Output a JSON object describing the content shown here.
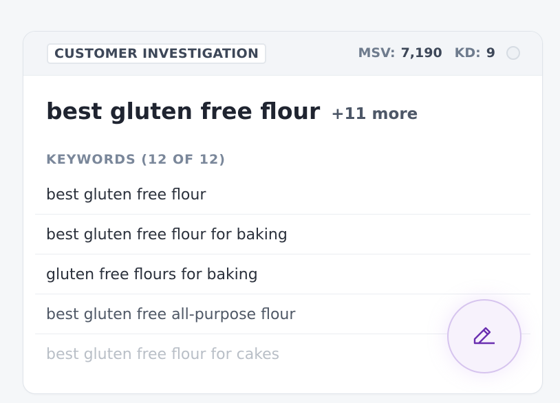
{
  "header": {
    "tag": "CUSTOMER INVESTIGATION",
    "msv_label": "MSV:",
    "msv_value": "7,190",
    "kd_label": "KD:",
    "kd_value": "9"
  },
  "title": "best gluten free flour",
  "more": "+11 more",
  "keywords_label": "KEYWORDS (12 OF 12)",
  "keywords": [
    "best gluten free flour",
    "best gluten free flour for baking",
    "gluten free flours for baking",
    "best gluten free all-purpose flour",
    "best gluten free flour for cakes"
  ],
  "fab": {
    "icon": "pencil-icon",
    "color": "#6a2fb0"
  }
}
